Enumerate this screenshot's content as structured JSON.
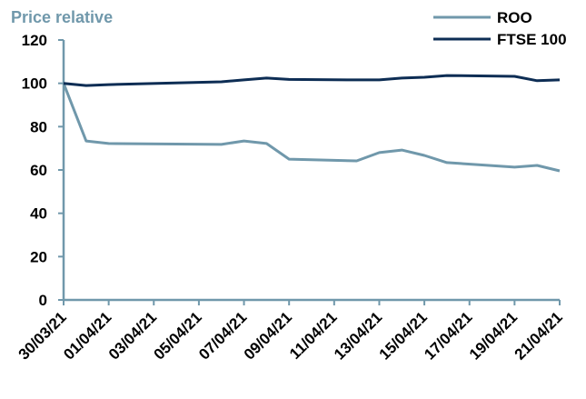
{
  "chart_data": {
    "type": "line",
    "title": "Price relative",
    "xlabel": "",
    "ylabel": "",
    "ylim": [
      0,
      120
    ],
    "yticks": [
      0,
      20,
      40,
      60,
      80,
      100,
      120
    ],
    "xlim": [
      "30/03/21",
      "21/04/21"
    ],
    "xticks": [
      "30/03/21",
      "01/04/21",
      "03/04/21",
      "05/04/21",
      "07/04/21",
      "09/04/21",
      "11/04/21",
      "13/04/21",
      "15/04/21",
      "17/04/21",
      "19/04/21",
      "21/04/21"
    ],
    "grid": false,
    "legend_position": "top-right",
    "x": [
      "30/03/21",
      "31/03/21",
      "01/04/21",
      "06/04/21",
      "07/04/21",
      "08/04/21",
      "09/04/21",
      "12/04/21",
      "13/04/21",
      "14/04/21",
      "15/04/21",
      "16/04/21",
      "19/04/21",
      "20/04/21",
      "21/04/21"
    ],
    "series": [
      {
        "name": "ROO",
        "color": "#7098ab",
        "values": [
          100,
          73.4,
          72.2,
          71.8,
          73.4,
          72.2,
          65.0,
          64.2,
          68.0,
          69.2,
          66.7,
          63.4,
          61.3,
          62.1,
          59.6
        ]
      },
      {
        "name": "FTSE 100",
        "color": "#0d2d54",
        "values": [
          100,
          99.0,
          99.4,
          100.7,
          101.6,
          102.4,
          101.8,
          101.6,
          101.6,
          102.4,
          102.8,
          103.6,
          103.2,
          101.2,
          101.6
        ]
      }
    ],
    "axis_color": "#7098ab"
  }
}
